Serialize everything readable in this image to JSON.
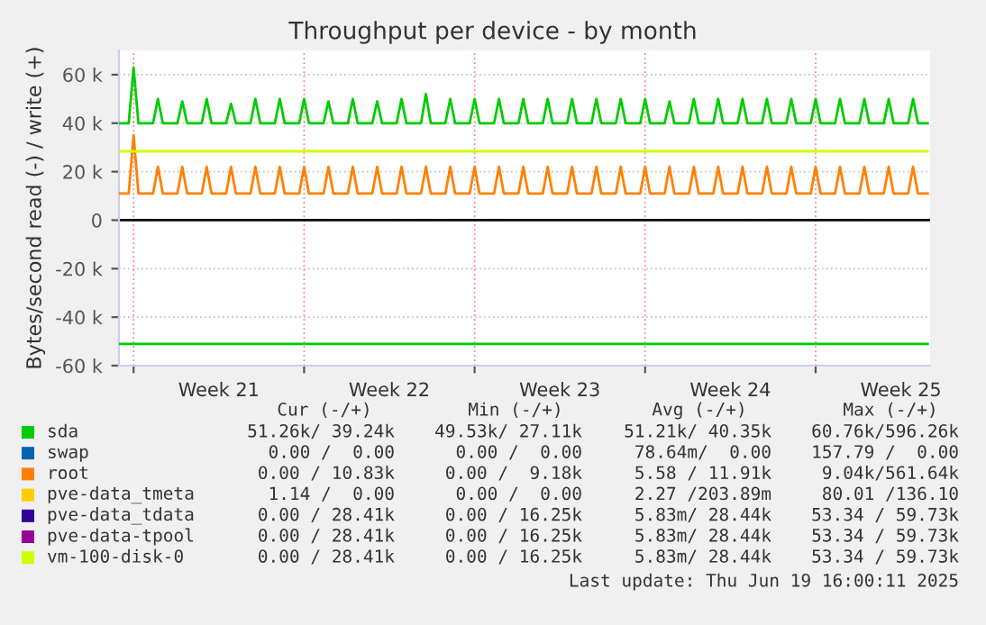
{
  "chart_data": {
    "type": "line",
    "title": "Throughput per device - by month",
    "ylabel": "Bytes/second read (-) / write (+)",
    "x": [
      "2025-05-18T09:36",
      "2025-05-18T19:12",
      "2025-05-19T00:00",
      "2025-05-19T04:48",
      "2025-05-19T19:12",
      "2025-05-20T00:00",
      "2025-05-20T04:48",
      "2025-05-20T19:12",
      "2025-05-21T00:00",
      "2025-05-21T04:48",
      "2025-05-21T19:12",
      "2025-05-22T00:00",
      "2025-05-22T04:48",
      "2025-05-22T19:12",
      "2025-05-23T00:00",
      "2025-05-23T04:48",
      "2025-05-23T19:12",
      "2025-05-24T00:00",
      "2025-05-24T04:48",
      "2025-05-24T19:12",
      "2025-05-25T00:00",
      "2025-05-25T04:48",
      "2025-05-25T19:12",
      "2025-05-26T00:00",
      "2025-05-26T04:48",
      "2025-05-26T19:12",
      "2025-05-27T00:00",
      "2025-05-27T04:48",
      "2025-05-27T19:12",
      "2025-05-28T00:00",
      "2025-05-28T04:48",
      "2025-05-28T19:12",
      "2025-05-29T00:00",
      "2025-05-29T04:48",
      "2025-05-29T19:12",
      "2025-05-30T00:00",
      "2025-05-30T04:48",
      "2025-05-30T19:12",
      "2025-05-31T00:00",
      "2025-05-31T04:48",
      "2025-05-31T19:12",
      "2025-06-01T00:00",
      "2025-06-01T04:48",
      "2025-06-01T19:12",
      "2025-06-02T00:00",
      "2025-06-02T04:48",
      "2025-06-02T19:12",
      "2025-06-03T00:00",
      "2025-06-03T04:48",
      "2025-06-03T19:12",
      "2025-06-04T00:00",
      "2025-06-04T04:48",
      "2025-06-04T19:12",
      "2025-06-05T00:00",
      "2025-06-05T04:48",
      "2025-06-05T19:12",
      "2025-06-06T00:00",
      "2025-06-06T04:48",
      "2025-06-06T19:12",
      "2025-06-07T00:00",
      "2025-06-07T04:48",
      "2025-06-07T19:12",
      "2025-06-08T00:00",
      "2025-06-08T04:48",
      "2025-06-08T19:12",
      "2025-06-09T00:00",
      "2025-06-09T04:48",
      "2025-06-09T19:12",
      "2025-06-10T00:00",
      "2025-06-10T04:48",
      "2025-06-10T19:12",
      "2025-06-11T00:00",
      "2025-06-11T04:48",
      "2025-06-11T19:12",
      "2025-06-12T00:00",
      "2025-06-12T04:48",
      "2025-06-12T19:12",
      "2025-06-13T00:00",
      "2025-06-13T04:48",
      "2025-06-13T19:12",
      "2025-06-14T00:00",
      "2025-06-14T04:48",
      "2025-06-14T19:12",
      "2025-06-15T00:00",
      "2025-06-15T04:48",
      "2025-06-15T19:12",
      "2025-06-16T00:00",
      "2025-06-16T04:48",
      "2025-06-16T19:12",
      "2025-06-17T00:00",
      "2025-06-17T04:48",
      "2025-06-17T19:12",
      "2025-06-18T00:00",
      "2025-06-18T04:48",
      "2025-06-18T19:12",
      "2025-06-19T00:00",
      "2025-06-19T04:48",
      "2025-06-19T19:12",
      "2025-06-20T00:00",
      "2025-06-20T04:48",
      "2025-06-20T14:24"
    ],
    "xlim": [
      "2025-05-18T09:36",
      "2025-06-20T16:48"
    ],
    "xticks": [
      {
        "value": "2025-05-19",
        "label": null
      },
      {
        "value": "2025-05-22T12:00",
        "label": "Week 21"
      },
      {
        "value": "2025-05-26",
        "label": null
      },
      {
        "value": "2025-05-29T12:00",
        "label": "Week 22"
      },
      {
        "value": "2025-06-02",
        "label": null
      },
      {
        "value": "2025-06-05T12:00",
        "label": "Week 23"
      },
      {
        "value": "2025-06-09",
        "label": null
      },
      {
        "value": "2025-06-12T12:00",
        "label": "Week 24"
      },
      {
        "value": "2025-06-16",
        "label": null
      },
      {
        "value": "2025-06-19T12:00",
        "label": "Week 25"
      }
    ],
    "ylim": [
      -60000,
      70000
    ],
    "yticks": [
      {
        "value": -60000,
        "label": "-60 k"
      },
      {
        "value": -40000,
        "label": "-40 k"
      },
      {
        "value": -20000,
        "label": "-20 k"
      },
      0,
      {
        "value": 20000,
        "label": "20 k"
      },
      {
        "value": 40000,
        "label": "40 k"
      },
      {
        "value": 60000,
        "label": "60 k"
      }
    ],
    "grid": true,
    "legend": "bottom",
    "ref_lines": [
      {
        "axis": "y",
        "value": 0,
        "color": "#000000"
      }
    ],
    "series": [
      {
        "name": "sda",
        "color": "#00cc00",
        "values": [
          40000,
          40000,
          63000,
          40000,
          40000,
          50000,
          40000,
          40000,
          49000,
          40000,
          40000,
          50000,
          40000,
          40000,
          48000,
          40000,
          40000,
          50000,
          40000,
          40000,
          50000,
          40000,
          40000,
          50000,
          40000,
          40000,
          49000,
          40000,
          40000,
          50000,
          40000,
          40000,
          49000,
          40000,
          40000,
          50000,
          40000,
          40000,
          52000,
          40000,
          40000,
          50000,
          40000,
          40000,
          50000,
          40000,
          40000,
          50000,
          40000,
          40000,
          50000,
          40000,
          40000,
          50000,
          40000,
          40000,
          50000,
          40000,
          40000,
          50000,
          40000,
          40000,
          50000,
          40000,
          40000,
          50000,
          40000,
          40000,
          49000,
          40000,
          40000,
          50000,
          40000,
          40000,
          50000,
          40000,
          40000,
          50000,
          40000,
          40000,
          50000,
          40000,
          40000,
          50000,
          40000,
          40000,
          50000,
          40000,
          40000,
          50000,
          40000,
          40000,
          50000,
          40000,
          40000,
          50000,
          40000,
          40000,
          50000,
          40000,
          40000
        ]
      },
      {
        "name": "swap",
        "color": "#0066b3",
        "values": [
          null,
          null,
          null,
          null,
          null,
          null,
          null,
          null,
          null,
          null,
          null,
          null,
          null,
          null,
          null,
          null,
          null,
          null,
          null,
          null,
          null,
          null,
          null,
          null,
          null,
          null,
          null,
          null,
          null,
          null,
          null,
          null,
          null,
          null,
          null,
          null,
          null,
          null,
          null,
          null,
          null,
          null,
          null,
          null,
          null,
          null,
          null,
          null,
          null,
          null,
          null,
          null,
          null,
          null,
          null,
          null,
          null,
          null,
          null,
          null,
          null,
          null,
          null,
          null,
          null,
          null,
          null,
          null,
          null,
          null,
          null,
          null,
          null,
          null,
          null,
          null,
          null,
          null,
          null,
          null,
          null,
          null,
          null,
          null,
          null,
          null,
          null,
          null,
          null,
          null,
          null,
          null,
          null,
          null,
          null,
          null,
          null,
          null,
          null,
          null,
          null
        ]
      },
      {
        "name": "root",
        "color": "#ff8000",
        "values": [
          11000,
          11000,
          35000,
          11000,
          11000,
          22000,
          11000,
          11000,
          22000,
          11000,
          11000,
          22000,
          11000,
          11000,
          22000,
          11000,
          11000,
          22000,
          11000,
          11000,
          22000,
          11000,
          11000,
          22000,
          11000,
          11000,
          22000,
          11000,
          11000,
          22000,
          11000,
          11000,
          22000,
          11000,
          11000,
          22000,
          11000,
          11000,
          22000,
          11000,
          11000,
          22000,
          11000,
          11000,
          22000,
          11000,
          11000,
          22000,
          11000,
          11000,
          22000,
          11000,
          11000,
          22000,
          11000,
          11000,
          22000,
          11000,
          11000,
          22000,
          11000,
          11000,
          22000,
          11000,
          11000,
          22000,
          11000,
          11000,
          22000,
          11000,
          11000,
          22000,
          11000,
          11000,
          22000,
          11000,
          11000,
          22000,
          11000,
          11000,
          22000,
          11000,
          11000,
          22000,
          11000,
          11000,
          22000,
          11000,
          11000,
          22000,
          11000,
          11000,
          22000,
          11000,
          11000,
          22000,
          11000,
          11000,
          22000,
          11000,
          11000
        ]
      },
      {
        "name": "pve-data_tmeta",
        "color": "#ffcc00",
        "values": [
          null,
          null,
          null,
          null,
          null,
          null,
          null,
          null,
          null,
          null,
          null,
          null,
          null,
          null,
          null,
          null,
          null,
          null,
          null,
          null,
          null,
          null,
          null,
          null,
          null,
          null,
          null,
          null,
          null,
          null,
          null,
          null,
          null,
          null,
          null,
          null,
          null,
          null,
          null,
          null,
          null,
          null,
          null,
          null,
          null,
          null,
          null,
          null,
          null,
          null,
          null,
          null,
          null,
          null,
          null,
          null,
          null,
          null,
          null,
          null,
          null,
          null,
          null,
          null,
          null,
          null,
          null,
          null,
          null,
          null,
          null,
          null,
          null,
          null,
          null,
          null,
          null,
          null,
          null,
          null,
          null,
          null,
          null,
          null,
          null,
          null,
          null,
          null,
          null,
          null,
          null,
          null,
          null,
          null,
          null,
          null,
          null,
          null,
          null,
          null,
          null
        ]
      },
      {
        "name": "pve-data_tdata",
        "color": "#330099",
        "values": [
          null,
          null,
          null,
          null,
          null,
          null,
          null,
          null,
          null,
          null,
          null,
          null,
          null,
          null,
          null,
          null,
          null,
          null,
          null,
          null,
          null,
          null,
          null,
          null,
          null,
          null,
          null,
          null,
          null,
          null,
          null,
          null,
          null,
          null,
          null,
          null,
          null,
          null,
          null,
          null,
          null,
          null,
          null,
          null,
          null,
          null,
          null,
          null,
          null,
          null,
          null,
          null,
          null,
          null,
          null,
          null,
          null,
          null,
          null,
          null,
          null,
          null,
          null,
          null,
          null,
          null,
          null,
          null,
          null,
          null,
          null,
          null,
          null,
          null,
          null,
          null,
          null,
          null,
          null,
          null,
          null,
          null,
          null,
          null,
          null,
          null,
          null,
          null,
          null,
          null,
          null,
          null,
          null,
          null,
          null,
          null,
          null,
          null,
          null,
          null,
          null
        ]
      },
      {
        "name": "pve-data-tpool",
        "color": "#990099",
        "values": [
          null,
          null,
          null,
          null,
          null,
          null,
          null,
          null,
          null,
          null,
          null,
          null,
          null,
          null,
          null,
          null,
          null,
          null,
          null,
          null,
          null,
          null,
          null,
          null,
          null,
          null,
          null,
          null,
          null,
          null,
          null,
          null,
          null,
          null,
          null,
          null,
          null,
          null,
          null,
          null,
          null,
          null,
          null,
          null,
          null,
          null,
          null,
          null,
          null,
          null,
          null,
          null,
          null,
          null,
          null,
          null,
          null,
          null,
          null,
          null,
          null,
          null,
          null,
          null,
          null,
          null,
          null,
          null,
          null,
          null,
          null,
          null,
          null,
          null,
          null,
          null,
          null,
          null,
          null,
          null,
          null,
          null,
          null,
          null,
          null,
          null,
          null,
          null,
          null,
          null,
          null,
          null,
          null,
          null,
          null,
          null,
          null,
          null,
          null,
          null,
          null
        ]
      },
      {
        "name": "vm-100-disk-0",
        "color": "#ccff00",
        "x": [
          "2025-05-18T09:36",
          "2025-06-20T14:24"
        ],
        "values": [
          28400,
          28400
        ]
      },
      {
        "color": "#00cc00",
        "x": [
          "2025-05-18T09:36",
          "2025-06-20T14:24"
        ],
        "values": [
          -51000,
          -51000
        ]
      }
    ],
    "annotations": [
      "Cur (-/+)",
      "Min (-/+)",
      "Avg (-/+)",
      "Max (-/+)",
      "51.26k/ 39.24k",
      "49.53k/ 27.11k",
      "51.21k/ 40.35k",
      "60.76k/596.26k",
      "0.00 /  0.00",
      "0.00 /  0.00",
      "78.64m/  0.00",
      "157.79 /  0.00",
      "0.00 / 10.83k",
      "0.00 /  9.18k",
      "5.58 / 11.91k",
      "9.04k/561.64k",
      "1.14 /  0.00",
      "0.00 /  0.00",
      "2.27 /203.89m",
      "80.01 /136.10",
      "0.00 / 28.41k",
      "0.00 / 16.25k",
      "5.83m/ 28.44k",
      "53.34 / 59.73k",
      "0.00 / 28.41k",
      "0.00 / 16.25k",
      "5.83m/ 28.44k",
      "53.34 / 59.73k",
      "0.00 / 28.41k",
      "0.00 / 16.25k",
      "5.83m/ 28.44k",
      "53.34 / 59.73k",
      "Last update: Thu Jun 19 16:00:11 2025"
    ]
  }
}
